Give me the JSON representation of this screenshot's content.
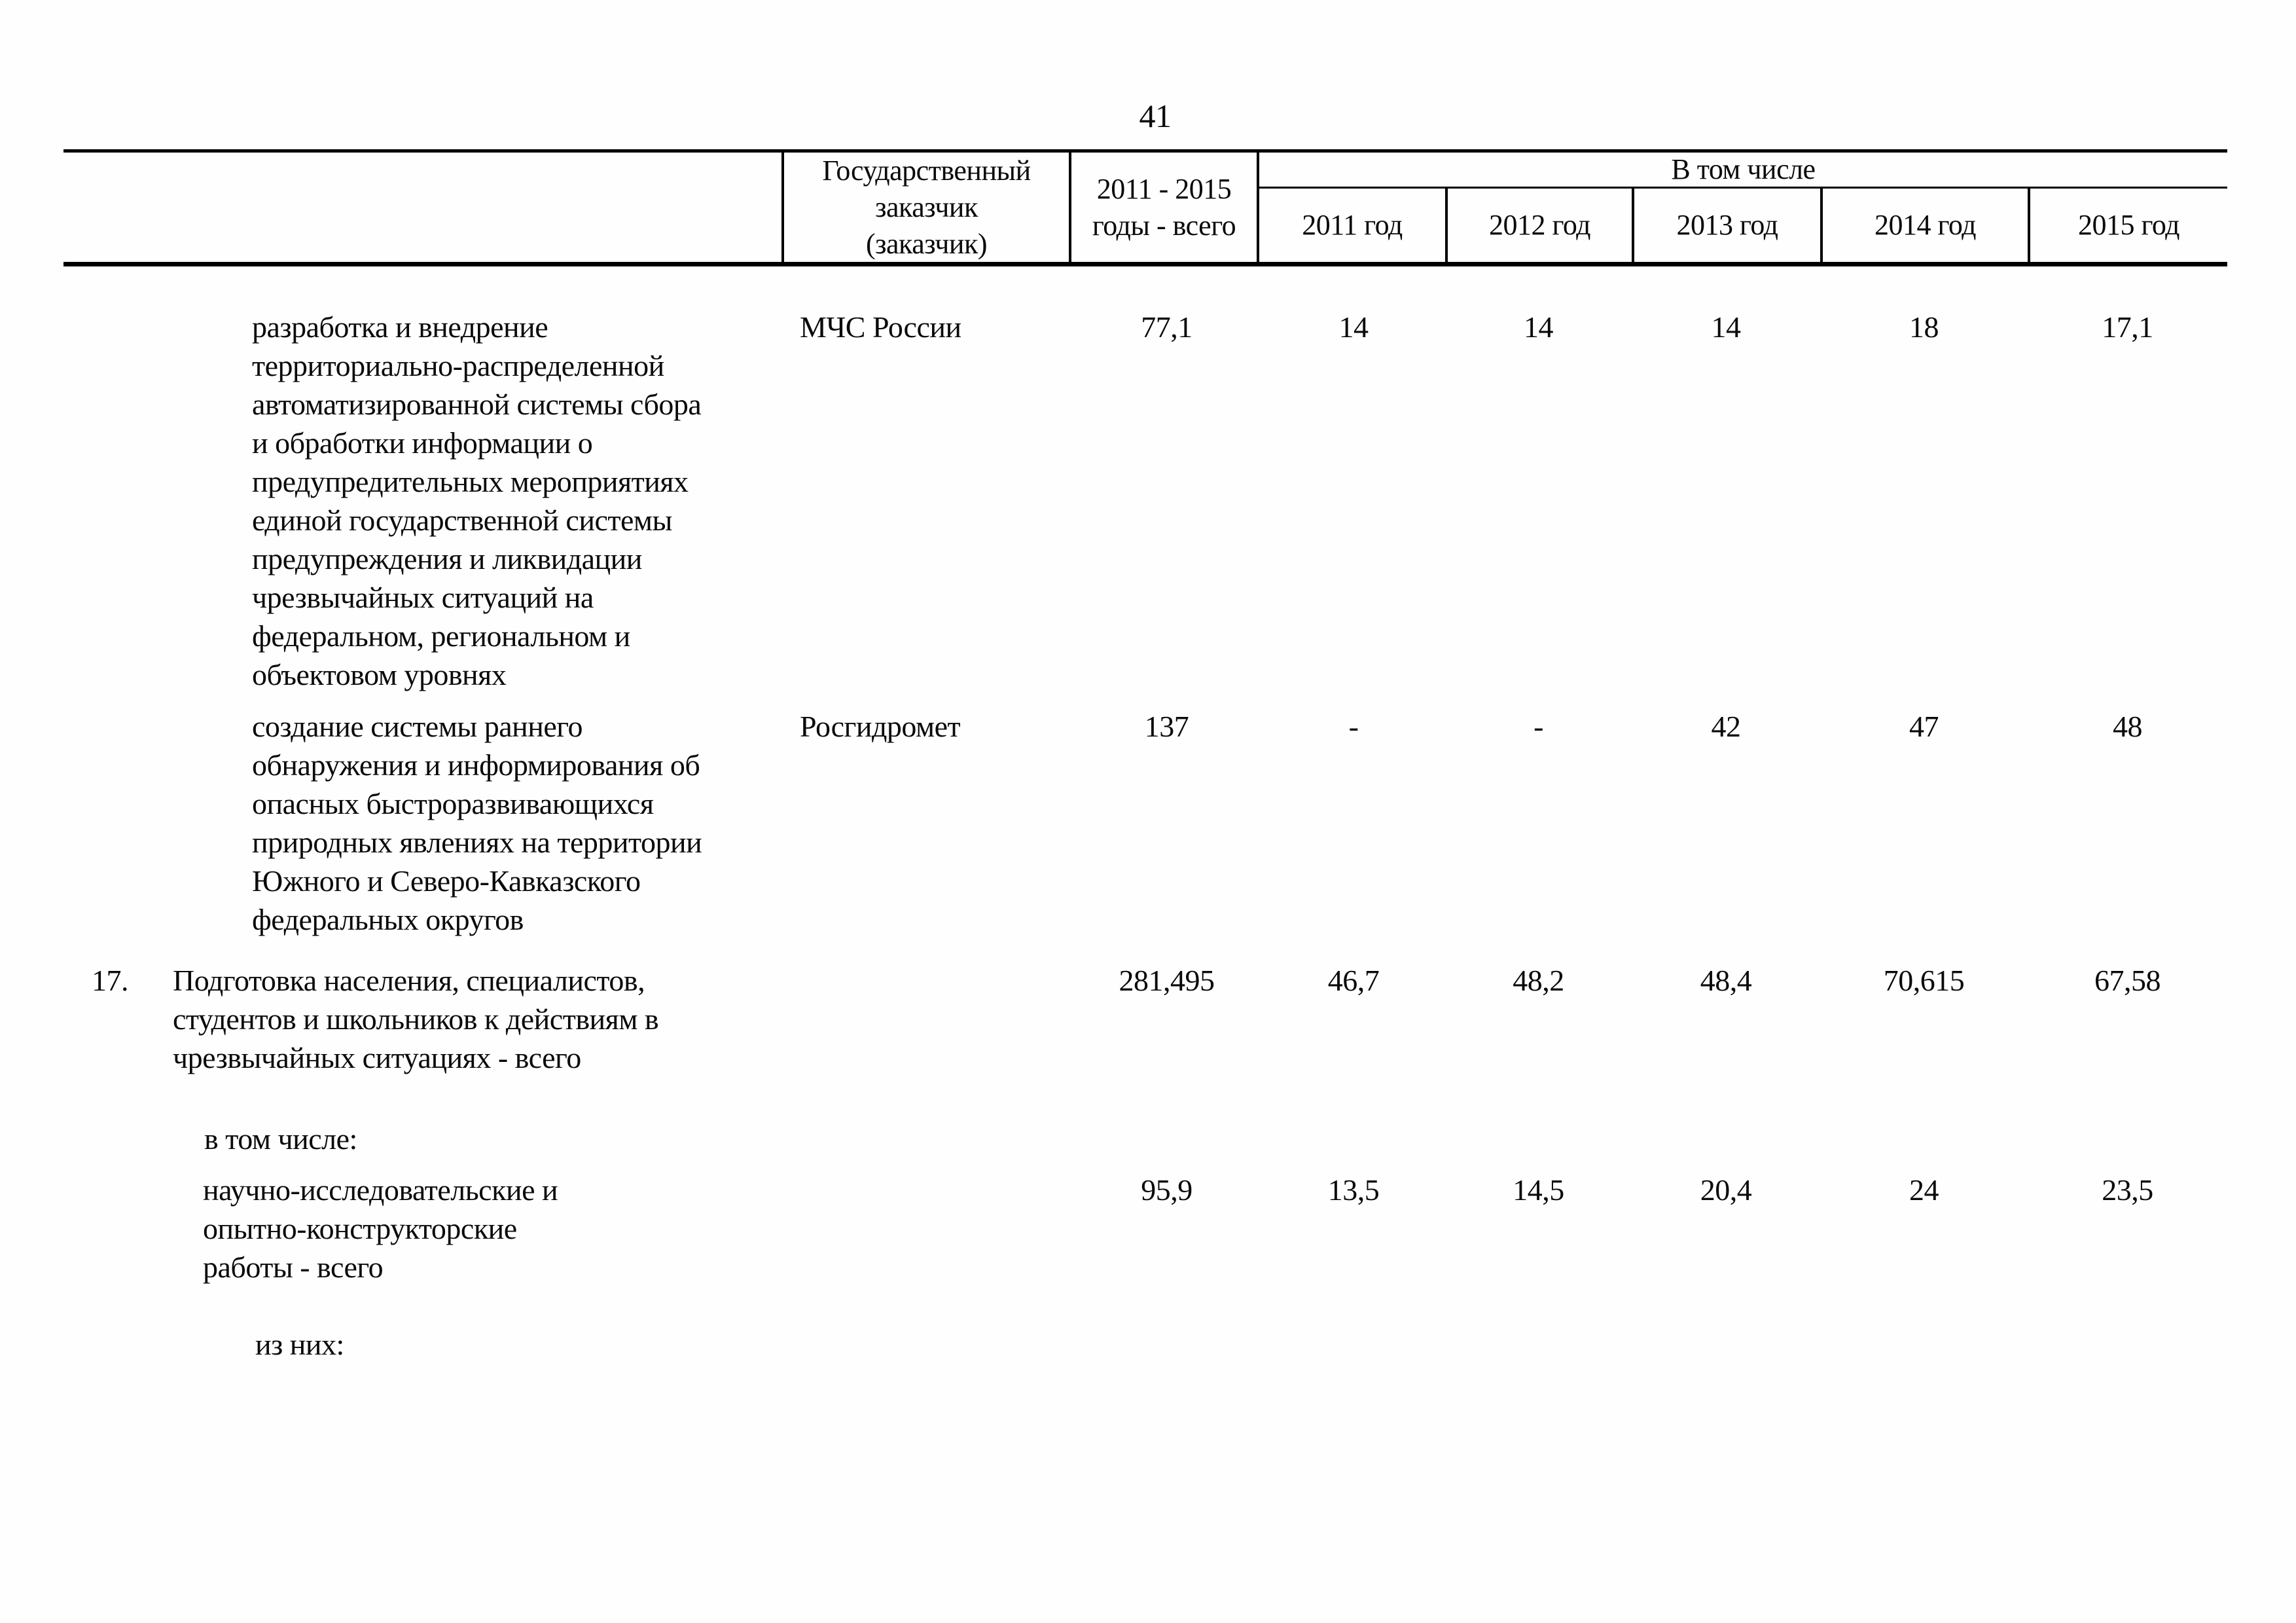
{
  "page_number": "41",
  "table": {
    "header": {
      "customer_lines": [
        "Государственный",
        "заказчик",
        "(заказчик)"
      ],
      "total_lines": [
        "2011 - 2015",
        "годы - всего"
      ],
      "including": "В том числе",
      "years": [
        "2011 год",
        "2012 год",
        "2013 год",
        "2014 год",
        "2015 год"
      ]
    },
    "rows": [
      {
        "text_lines": [
          "разработка и внедрение",
          "территориально-распределенной",
          "автоматизированной системы сбора",
          "и обработки информации о",
          "предупредительных мероприятиях",
          "единой государственной системы",
          "предупреждения и ликвидации",
          "чрезвычайных ситуаций на",
          "федеральном, региональном и",
          "объектовом уровнях"
        ],
        "customer": "МЧС России",
        "values": [
          "77,1",
          "14",
          "14",
          "14",
          "18",
          "17,1"
        ]
      },
      {
        "text_lines": [
          "создание системы раннего",
          "обнаружения и информирования об",
          "опасных быстроразвивающихся",
          "природных явлениях на территории",
          "Южного и Северо-Кавказского",
          "федеральных округов"
        ],
        "customer": "Росгидромет",
        "values": [
          "137",
          "-",
          "-",
          "42",
          "47",
          "48"
        ]
      },
      {
        "number": "17.",
        "text_lines": [
          "Подготовка населения, специалистов,",
          "студентов и школьников к действиям в",
          "чрезвычайных ситуациях - всего"
        ],
        "values": [
          "281,495",
          "46,7",
          "48,2",
          "48,4",
          "70,615",
          "67,58"
        ]
      },
      {
        "label": "в том числе:"
      },
      {
        "text_lines": [
          "научно-исследовательские и",
          "опытно-конструкторские",
          "работы - всего"
        ],
        "values": [
          "95,9",
          "13,5",
          "14,5",
          "20,4",
          "24",
          "23,5"
        ]
      },
      {
        "label": "из них:"
      }
    ]
  }
}
